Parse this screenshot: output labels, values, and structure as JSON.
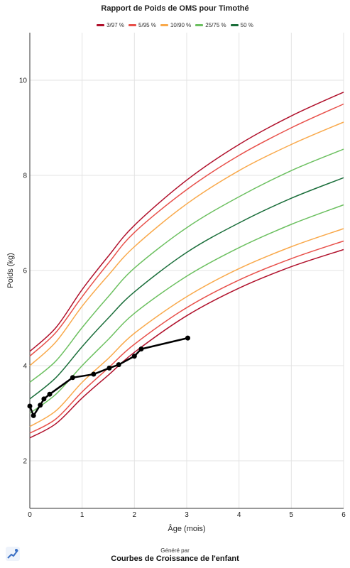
{
  "chart_data": {
    "type": "line",
    "title": "Rapport de Poids de OMS pour Timothé",
    "xlabel": "Âge (mois)",
    "ylabel": "Poids (kg)",
    "xlim": [
      0,
      6
    ],
    "ylim": [
      1,
      11
    ],
    "x_ticks": [
      0,
      1,
      2,
      3,
      4,
      5,
      6
    ],
    "y_ticks": [
      2,
      4,
      6,
      8,
      10
    ],
    "grid": true,
    "legend_position": "top-center",
    "legend": [
      {
        "label": "3/97 %",
        "color": "#b0102b"
      },
      {
        "label": "5/95 %",
        "color": "#e8504a"
      },
      {
        "label": "10/90 %",
        "color": "#f9a94b"
      },
      {
        "label": "25/75 %",
        "color": "#6cc060"
      },
      {
        "label": "50 %",
        "color": "#1a6e3a"
      }
    ],
    "percentile_x": [
      0,
      0.5,
      1,
      1.5,
      2,
      3,
      4,
      5,
      6
    ],
    "percentile_curves": [
      {
        "group": "3/97 %",
        "color": "#b0102b",
        "values": [
          4.3,
          4.8,
          5.6,
          6.3,
          6.95,
          7.9,
          8.65,
          9.25,
          9.75
        ]
      },
      {
        "group": "5/95 %",
        "color": "#e8504a",
        "values": [
          4.2,
          4.7,
          5.45,
          6.15,
          6.8,
          7.7,
          8.42,
          9.0,
          9.5
        ]
      },
      {
        "group": "10/90 %",
        "color": "#f9a94b",
        "values": [
          4.0,
          4.5,
          5.25,
          5.9,
          6.5,
          7.4,
          8.1,
          8.65,
          9.12
        ]
      },
      {
        "group": "25/75 %",
        "color": "#6cc060",
        "values": [
          3.65,
          4.1,
          4.8,
          5.45,
          6.05,
          6.9,
          7.55,
          8.1,
          8.55
        ]
      },
      {
        "group": "50 %",
        "color": "#1a6e3a",
        "values": [
          3.3,
          3.75,
          4.4,
          5.0,
          5.55,
          6.38,
          7.0,
          7.52,
          7.95
        ]
      },
      {
        "group": "25/75 %",
        "color": "#6cc060",
        "values": [
          3.0,
          3.4,
          4.0,
          4.55,
          5.1,
          5.88,
          6.48,
          6.97,
          7.38
        ]
      },
      {
        "group": "10/90 %",
        "color": "#f9a94b",
        "values": [
          2.72,
          3.05,
          3.65,
          4.15,
          4.68,
          5.45,
          6.04,
          6.5,
          6.88
        ]
      },
      {
        "group": "5/95 %",
        "color": "#e8504a",
        "values": [
          2.58,
          2.88,
          3.45,
          3.95,
          4.45,
          5.22,
          5.8,
          6.25,
          6.62
        ]
      },
      {
        "group": "3/97 %",
        "color": "#b0102b",
        "values": [
          2.48,
          2.78,
          3.32,
          3.8,
          4.28,
          5.05,
          5.63,
          6.08,
          6.44
        ]
      }
    ],
    "child_series": {
      "color": "#000000",
      "x": [
        0,
        0.07,
        0.2,
        0.27,
        0.38,
        0.82,
        1.22,
        1.52,
        1.7,
        2.0,
        2.13,
        3.02
      ],
      "values": [
        3.15,
        2.95,
        3.17,
        3.3,
        3.4,
        3.75,
        3.82,
        3.95,
        4.02,
        4.2,
        4.35,
        4.58
      ]
    }
  },
  "footer": {
    "caption": "Généré par",
    "app_name": "Courbes de Croissance de l'enfant"
  }
}
